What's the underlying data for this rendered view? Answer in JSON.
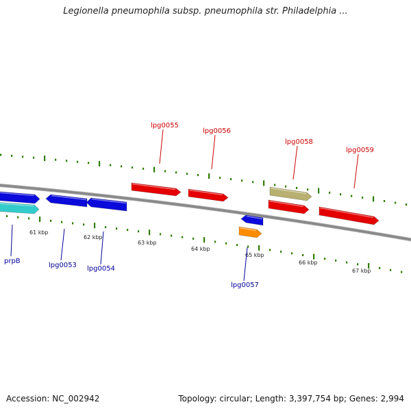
{
  "title": "Legionella pneumophila subsp. pneumophila str. Philadelphia ...",
  "footer": {
    "accession": "Accession: NC_002942",
    "summary": "Topology: circular; Length: 3,397,754 bp; Genes: 2,994"
  },
  "colors": {
    "forward_label": "#cc0000",
    "reverse_label": "#000099",
    "backbone": "#888888",
    "tick": "#2e7d00",
    "red_gene": "#e50000",
    "blue_gene": "#0a0adb",
    "cyan_gene": "#33cccc",
    "khaki_gene": "#b8b070",
    "orange_gene": "#ff8c00"
  },
  "ruler_labels": [
    "61 kbp",
    "62 kbp",
    "63 kbp",
    "64 kbp",
    "65 kbp",
    "66 kbp",
    "67 kbp"
  ],
  "forward_genes": [
    {
      "label": "lpg0055",
      "color": "red_gene"
    },
    {
      "label": "lpg0056",
      "color": "red_gene"
    },
    {
      "label": "lpg0058",
      "color": "khaki_gene"
    },
    {
      "label": "lpg0059",
      "color": "red_gene"
    }
  ],
  "reverse_genes": [
    {
      "label": "prpB",
      "color": "blue_gene"
    },
    {
      "label": "lpg0053",
      "color": "blue_gene"
    },
    {
      "label": "lpg0054",
      "color": "blue_gene"
    },
    {
      "label": "lpg0057",
      "color": "orange_gene"
    }
  ]
}
